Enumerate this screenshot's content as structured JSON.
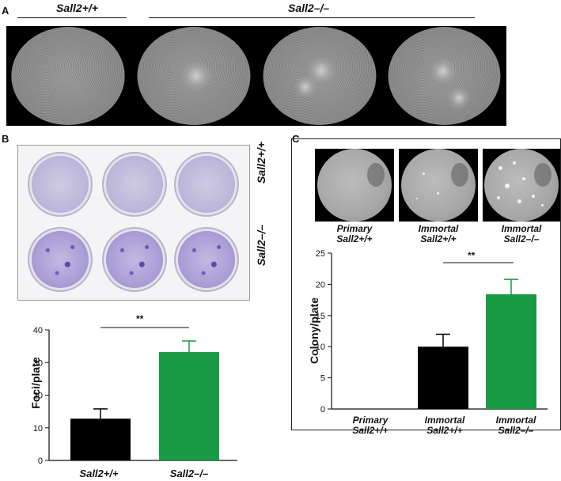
{
  "panel_a": {
    "letter": "A",
    "wt_label": "Sall2+/+",
    "ko_label": "Sall2–/–"
  },
  "panel_b": {
    "letter": "B",
    "row_wt": "Sall2+/+",
    "row_ko": "Sall2–/–",
    "significance": "**"
  },
  "panel_c": {
    "letter": "C",
    "image_captions": [
      {
        "line1": "Primary",
        "line2": "Sall2+/+"
      },
      {
        "line1": "Immortal",
        "line2": "Sall2+/+"
      },
      {
        "line1": "Immortal",
        "line2": "Sall2–/–"
      }
    ],
    "significance": "**"
  },
  "chart_data": [
    {
      "type": "bar",
      "panel": "B",
      "categories": [
        "Sall2+/+",
        "Sall2–/–"
      ],
      "values": [
        12.8,
        33.2
      ],
      "errors": [
        3.0,
        3.4
      ],
      "colors": [
        "#000000",
        "#1b9a45"
      ],
      "ylabel": "Foci/plate",
      "ylim": [
        0,
        40
      ],
      "yticks": [
        0,
        10,
        20,
        30,
        40
      ]
    },
    {
      "type": "bar",
      "panel": "C",
      "categories": [
        "Primary\nSall2+/+",
        "Immortal\nSall2+/+",
        "Immortal\nSall2–/–"
      ],
      "values": [
        0,
        10.0,
        18.4
      ],
      "errors": [
        0,
        2.0,
        2.4
      ],
      "colors": [
        "#000000",
        "#000000",
        "#1b9a45"
      ],
      "ylabel": "Colony/plate",
      "ylim": [
        0,
        25
      ],
      "yticks": [
        0,
        5,
        10,
        15,
        20,
        25
      ]
    }
  ]
}
